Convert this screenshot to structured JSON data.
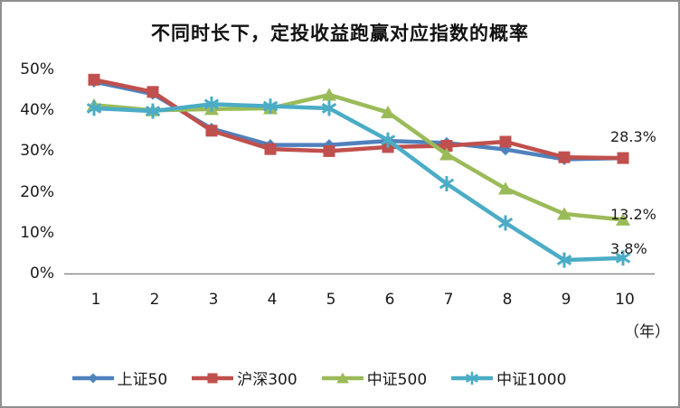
{
  "chart_data": {
    "type": "line",
    "title": "不同时长下，定投收益跑赢对应指数的概率",
    "x": [
      1,
      2,
      3,
      4,
      5,
      6,
      7,
      8,
      9,
      10
    ],
    "x_axis_unit": "（年）",
    "ylim": [
      0,
      50
    ],
    "yticks": [
      0,
      10,
      20,
      30,
      40,
      50
    ],
    "ytick_labels": [
      "0%",
      "10%",
      "20%",
      "30%",
      "40%",
      "50%"
    ],
    "grid": false,
    "legend_position": "bottom",
    "axis_color": "#8a8a8a",
    "series": [
      {
        "name": "上证50",
        "marker": "diamond",
        "color": "#4F81BD",
        "values": [
          47.0,
          44.0,
          35.5,
          31.5,
          31.5,
          32.5,
          32.0,
          30.4,
          28.0,
          28.3
        ]
      },
      {
        "name": "沪深300",
        "marker": "square",
        "color": "#C0504D",
        "values": [
          47.5,
          44.5,
          35.0,
          30.5,
          30.0,
          31.0,
          31.3,
          32.3,
          28.5,
          28.3
        ]
      },
      {
        "name": "中证500",
        "marker": "triangle",
        "color": "#9BBB59",
        "values": [
          41.3,
          40.0,
          40.3,
          40.5,
          43.8,
          39.5,
          29.2,
          20.8,
          14.6,
          13.2
        ]
      },
      {
        "name": "中证1000",
        "marker": "asterisk",
        "color": "#4BACC6",
        "values": [
          40.5,
          39.8,
          41.5,
          41.0,
          40.5,
          32.7,
          22.0,
          12.4,
          3.3,
          3.8
        ]
      }
    ],
    "annotations": [
      {
        "text": "28.3%",
        "x": 10,
        "y": 28.3
      },
      {
        "text": "13.2%",
        "x": 10,
        "y": 13.2
      },
      {
        "text": "3.8%",
        "x": 10,
        "y": 3.8
      }
    ]
  }
}
